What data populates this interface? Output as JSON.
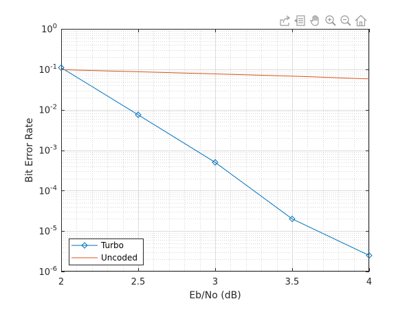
{
  "toolbar": {
    "icons": [
      "export-icon",
      "data-tips-icon",
      "pan-icon",
      "zoom-in-icon",
      "zoom-out-icon",
      "home-icon"
    ]
  },
  "chart_data": {
    "type": "line",
    "xlabel": "Eb/No (dB)",
    "ylabel": "Bit Error Rate",
    "xscale": "linear",
    "yscale": "log",
    "xlim": [
      2,
      4
    ],
    "ylim": [
      1e-06,
      1
    ],
    "xticks": [
      2,
      2.5,
      3,
      3.5,
      4
    ],
    "xtick_labels": [
      "2",
      "2.5",
      "3",
      "3.5",
      "4"
    ],
    "yticks": [
      1e-06,
      1e-05,
      0.0001,
      0.001,
      0.01,
      0.1,
      1
    ],
    "ytick_labels": [
      {
        "base": "10",
        "exp": "-6"
      },
      {
        "base": "10",
        "exp": "-5"
      },
      {
        "base": "10",
        "exp": "-4"
      },
      {
        "base": "10",
        "exp": "-3"
      },
      {
        "base": "10",
        "exp": "-2"
      },
      {
        "base": "10",
        "exp": "-1"
      },
      {
        "base": "10",
        "exp": "0"
      }
    ],
    "grid": true,
    "minor_grid": true,
    "legend_position": "bottom-left",
    "series": [
      {
        "name": "Turbo",
        "color": "#0072BD",
        "marker": "diamond",
        "x": [
          2,
          2.5,
          3,
          3.5,
          4
        ],
        "y": [
          0.11,
          0.0075,
          0.0005,
          2e-05,
          2.5e-06
        ]
      },
      {
        "name": "Uncoded",
        "color": "#D95319",
        "marker": "none",
        "x": [
          2,
          2.5,
          3,
          3.5,
          4
        ],
        "y": [
          0.098,
          0.087,
          0.077,
          0.068,
          0.058
        ]
      }
    ]
  }
}
